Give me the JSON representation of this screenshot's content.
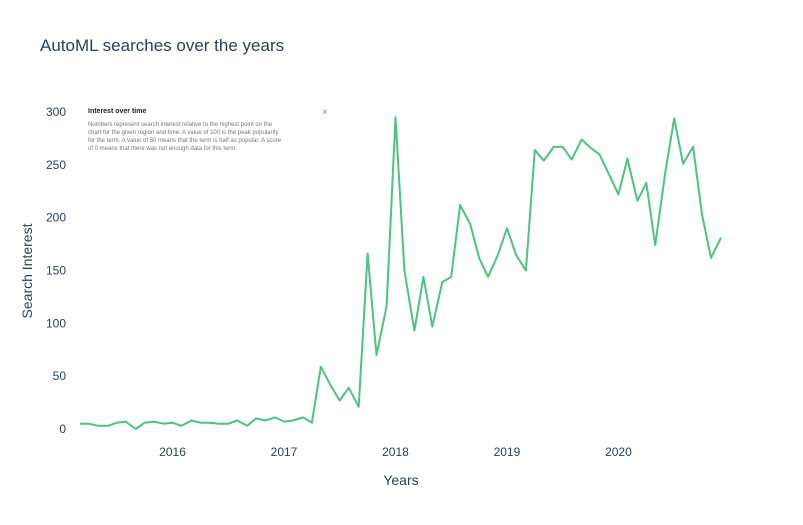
{
  "chart_data": {
    "type": "line",
    "title": "AutoML searches over the years",
    "xlabel": "Years",
    "ylabel": "Search Interest",
    "ylim": [
      0,
      300
    ],
    "yticks": [
      0,
      50,
      100,
      150,
      200,
      250,
      300
    ],
    "xlim": [
      2015.17,
      2020.92
    ],
    "xticks": [
      {
        "value": 2016,
        "label": "2016"
      },
      {
        "value": 2017,
        "label": "2017"
      },
      {
        "value": 2018,
        "label": "2018"
      },
      {
        "value": 2019,
        "label": "2019"
      },
      {
        "value": 2020,
        "label": "2020"
      }
    ],
    "grid": false,
    "line_color": "#4cc47f",
    "series": [
      {
        "x": [
          2015.17,
          2015.25,
          2015.33,
          2015.42,
          2015.5,
          2015.58,
          2015.67,
          2015.75,
          2015.83,
          2015.92,
          2016.0,
          2016.08,
          2016.17,
          2016.25,
          2016.33,
          2016.42,
          2016.5,
          2016.58,
          2016.67,
          2016.75,
          2016.83,
          2016.92,
          2017.0,
          2017.08,
          2017.17,
          2017.25,
          2017.33,
          2017.42,
          2017.5,
          2017.58,
          2017.67,
          2017.75,
          2017.83,
          2017.92,
          2018.0,
          2018.08,
          2018.17,
          2018.25,
          2018.33,
          2018.42,
          2018.5,
          2018.58,
          2018.67,
          2018.75,
          2018.83,
          2018.92,
          2019.0,
          2019.08,
          2019.17,
          2019.25,
          2019.33,
          2019.42,
          2019.5,
          2019.58,
          2019.67,
          2019.75,
          2019.83,
          2019.92,
          2020.0,
          2020.08,
          2020.17,
          2020.25,
          2020.33,
          2020.42,
          2020.5,
          2020.58,
          2020.67,
          2020.75,
          2020.83,
          2020.92
        ],
        "y": [
          5,
          5,
          3,
          3,
          6,
          7,
          0,
          6,
          7,
          5,
          6,
          3,
          8,
          6,
          6,
          5,
          5,
          8,
          3,
          10,
          8,
          11,
          7,
          8,
          11,
          6,
          59,
          41,
          27,
          39,
          21,
          166,
          70,
          116,
          295,
          150,
          93,
          144,
          97,
          139,
          144,
          212,
          194,
          162,
          144,
          165,
          190,
          165,
          150,
          264,
          254,
          267,
          267,
          255,
          274,
          266,
          260,
          240,
          222,
          256,
          216,
          233,
          174,
          243,
          294,
          251,
          267,
          203,
          162,
          181
        ]
      }
    ]
  },
  "popup": {
    "title": "Interest over time",
    "body_lines": [
      "Numbers represent search interest relative to the highest point on the",
      "chart for the given region and time. A value of 100 is the peak popularity",
      "for the term. A value of 50 means that the term is half as popular. A score",
      "of 0 means that there was not enough data for this term."
    ],
    "close": "×"
  },
  "colors": {
    "text": "#2a3f5f",
    "line": "#4cc47f"
  }
}
